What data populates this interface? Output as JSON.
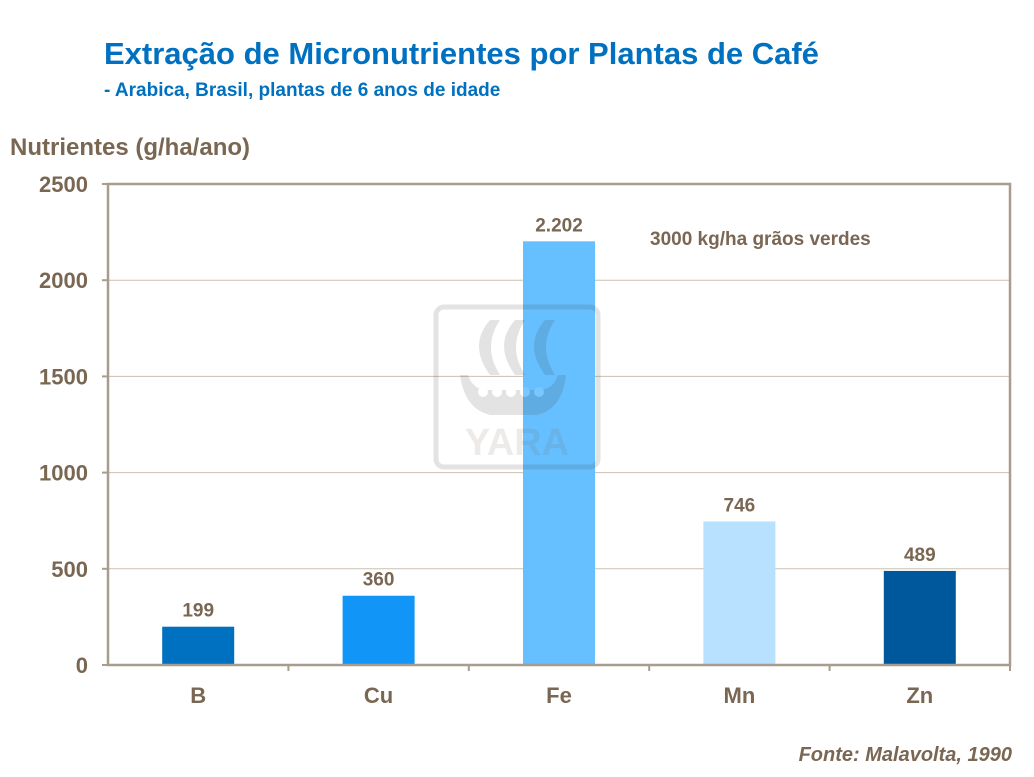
{
  "chart_data": {
    "type": "bar",
    "title": "Extração de Micronutrientes por Plantas de Café",
    "subtitle": "- Arabica, Brasil, plantas de 6 anos de idade",
    "ylabel": "Nutrientes (g/ha/ano)",
    "xlabel": "",
    "categories": [
      "B",
      "Cu",
      "Fe",
      "Mn",
      "Zn"
    ],
    "values": [
      199,
      360,
      2202,
      746,
      489
    ],
    "data_labels": [
      "199",
      "360",
      "2.202",
      "746",
      "489"
    ],
    "bar_colors": [
      "#0070C0",
      "#1196F7",
      "#66BFFF",
      "#B8E0FF",
      "#00589C"
    ],
    "ylim": [
      0,
      2500
    ],
    "yticks": [
      0,
      500,
      1000,
      1500,
      2000,
      2500
    ],
    "grid": true,
    "annotation": "3000 kg/ha grãos verdes",
    "source": "Fonte: Malavolta, 1990",
    "watermark": "YARA"
  }
}
